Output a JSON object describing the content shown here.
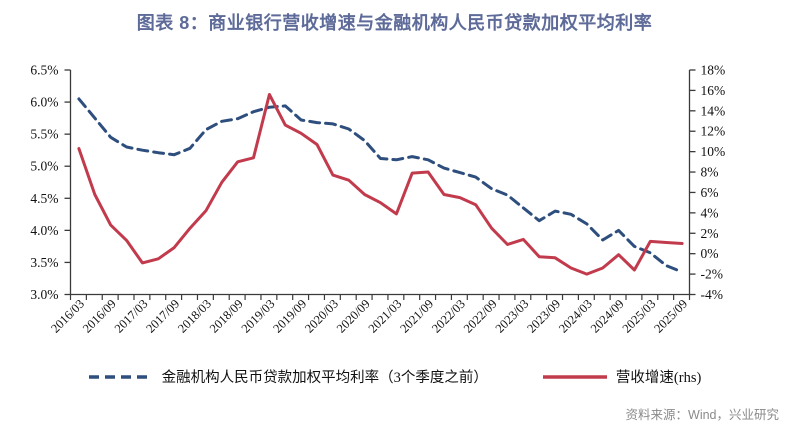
{
  "title": "图表 8：商业银行营收增速与金融机构人民币贷款加权平均利率",
  "source": "资料来源：Wind，兴业研究",
  "colors": {
    "title": "#5E6B99",
    "source_text": "#8a8a8a",
    "axis": "#3a3a3a",
    "tick_label": "#111111",
    "rate_line": "#2E4E7E",
    "revenue_line": "#C23B4D"
  },
  "chart_data": {
    "type": "line",
    "x": [
      "2016/03",
      "2016/06",
      "2016/09",
      "2016/12",
      "2017/03",
      "2017/06",
      "2017/09",
      "2017/12",
      "2018/03",
      "2018/06",
      "2018/09",
      "2018/12",
      "2019/03",
      "2019/06",
      "2019/09",
      "2019/12",
      "2020/03",
      "2020/06",
      "2020/09",
      "2020/12",
      "2021/03",
      "2021/06",
      "2021/09",
      "2021/12",
      "2022/03",
      "2022/06",
      "2022/09",
      "2022/12",
      "2023/03",
      "2023/06",
      "2023/09",
      "2023/12",
      "2024/03",
      "2024/06",
      "2024/09",
      "2024/12",
      "2025/03",
      "2025/06",
      "2025/09"
    ],
    "x_tick_labels_shown": [
      "2016/03",
      "2016/09",
      "2017/03",
      "2017/09",
      "2018/03",
      "2018/09",
      "2019/03",
      "2019/09",
      "2020/03",
      "2020/09",
      "2021/03",
      "2021/09",
      "2022/03",
      "2022/09",
      "2023/03",
      "2023/09",
      "2024/03",
      "2024/09",
      "2025/03",
      "2025/09"
    ],
    "series": [
      {
        "name": "金融机构人民币贷款加权平均利率（3个季度之前）",
        "axis": "left",
        "style": "dashed",
        "values": [
          6.05,
          5.75,
          5.45,
          5.3,
          5.25,
          5.21,
          5.18,
          5.28,
          5.57,
          5.7,
          5.74,
          5.85,
          5.92,
          5.94,
          5.72,
          5.68,
          5.66,
          5.58,
          5.4,
          5.12,
          5.1,
          5.15,
          5.1,
          4.97,
          4.9,
          4.83,
          4.65,
          4.55,
          4.35,
          4.15,
          4.3,
          4.25,
          4.1,
          3.85,
          4.0,
          3.75,
          3.65,
          3.45,
          3.35
        ]
      },
      {
        "name": "营收增速(rhs)",
        "axis": "right",
        "style": "solid",
        "values": [
          10.3,
          5.8,
          2.8,
          1.3,
          -0.9,
          -0.5,
          0.6,
          2.5,
          4.2,
          7.0,
          9.0,
          9.4,
          15.6,
          12.6,
          11.8,
          10.7,
          7.7,
          7.2,
          5.8,
          5.0,
          3.9,
          7.9,
          8.0,
          5.8,
          5.5,
          4.8,
          2.5,
          0.9,
          1.4,
          -0.3,
          -0.4,
          -1.4,
          -2.0,
          -1.4,
          -0.1,
          -1.6,
          1.2,
          1.1,
          1.0
        ]
      }
    ],
    "left_axis": {
      "min": 3.0,
      "max": 6.5,
      "step": 0.5,
      "tick_labels": [
        "6.5%",
        "6.0%",
        "5.5%",
        "5.0%",
        "4.5%",
        "4.0%",
        "3.5%",
        "3.0%"
      ]
    },
    "right_axis": {
      "min": -4,
      "max": 18,
      "step": 2,
      "tick_labels": [
        "18%",
        "16%",
        "14%",
        "12%",
        "10%",
        "8%",
        "6%",
        "4%",
        "2%",
        "0%",
        "-2%",
        "-4%"
      ]
    },
    "grid": false,
    "legend_position": "bottom"
  },
  "legend": {
    "items": [
      {
        "label": "金融机构人民币贷款加权平均利率（3个季度之前）"
      },
      {
        "label": "营收增速(rhs)"
      }
    ]
  }
}
